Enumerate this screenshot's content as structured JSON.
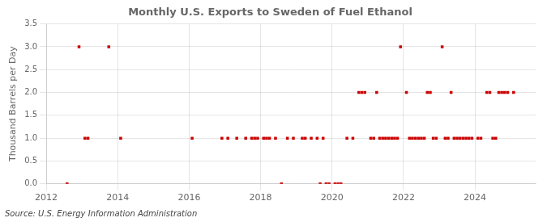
{
  "chart_data": {
    "type": "scatter",
    "title": "Monthly U.S. Exports to Sweden of Fuel Ethanol",
    "ylabel": "Thousand Barrels per Day",
    "annotations": [
      "Source: U.S. Energy Information Administration"
    ],
    "color": "#cc0000",
    "marker": "square",
    "grid": true,
    "xlim": [
      2012.0,
      2025.7
    ],
    "xticks": [
      2012,
      2014,
      2016,
      2018,
      2020,
      2022,
      2024
    ],
    "ylim": [
      0,
      3.5
    ],
    "yticks": [
      {
        "value": 0,
        "label": "0.0"
      },
      0.5,
      {
        "value": 1,
        "label": "1.0"
      },
      1.5,
      {
        "value": 2,
        "label": "2.0"
      },
      2.5,
      {
        "value": 3,
        "label": "3.0"
      },
      3.5
    ],
    "x": [
      2012.583,
      2012.917,
      2013.083,
      2013.167,
      2013.75,
      2014.083,
      2016.083,
      2016.917,
      2017.083,
      2017.333,
      2017.583,
      2017.75,
      2017.833,
      2017.917,
      2018.083,
      2018.167,
      2018.25,
      2018.417,
      2018.583,
      2018.75,
      2018.917,
      2019.167,
      2019.25,
      2019.417,
      2019.583,
      2019.667,
      2019.75,
      2019.833,
      2019.917,
      2020.083,
      2020.167,
      2020.25,
      2020.417,
      2020.583,
      2020.75,
      2020.833,
      2020.917,
      2021.083,
      2021.167,
      2021.25,
      2021.333,
      2021.417,
      2021.5,
      2021.583,
      2021.667,
      2021.75,
      2021.833,
      2021.917,
      2022.083,
      2022.167,
      2022.25,
      2022.333,
      2022.417,
      2022.5,
      2022.583,
      2022.667,
      2022.75,
      2022.833,
      2022.917,
      2023.083,
      2023.167,
      2023.25,
      2023.333,
      2023.417,
      2023.5,
      2023.583,
      2023.667,
      2023.75,
      2023.833,
      2023.917,
      2024.083,
      2024.167,
      2024.333,
      2024.417,
      2024.5,
      2024.583,
      2024.667,
      2024.75,
      2024.833,
      2024.917,
      2025.083
    ],
    "values": [
      0.0,
      3.0,
      1.0,
      1.0,
      3.0,
      1.0,
      1.0,
      1.0,
      1.0,
      1.0,
      1.0,
      1.0,
      1.0,
      1.0,
      1.0,
      1.0,
      1.0,
      1.0,
      0.0,
      1.0,
      1.0,
      1.0,
      1.0,
      1.0,
      1.0,
      0.0,
      1.0,
      0.0,
      0.0,
      0.0,
      0.0,
      0.0,
      1.0,
      1.0,
      2.0,
      2.0,
      2.0,
      1.0,
      1.0,
      2.0,
      1.0,
      1.0,
      1.0,
      1.0,
      1.0,
      1.0,
      1.0,
      3.0,
      2.0,
      1.0,
      1.0,
      1.0,
      1.0,
      1.0,
      1.0,
      2.0,
      2.0,
      1.0,
      1.0,
      3.0,
      1.0,
      1.0,
      2.0,
      1.0,
      1.0,
      1.0,
      1.0,
      1.0,
      1.0,
      1.0,
      1.0,
      1.0,
      2.0,
      2.0,
      1.0,
      1.0,
      2.0,
      2.0,
      2.0,
      2.0,
      2.0
    ]
  }
}
